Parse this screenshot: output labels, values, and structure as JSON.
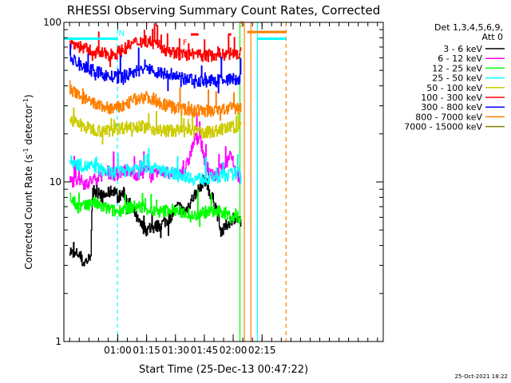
{
  "chart_data": {
    "type": "line",
    "title": "RHESSI Observing Summary Count Rates, Corrected",
    "xlabel": "Start Time (25-Dec-13 00:47:22)",
    "ylabel": "Corrected Count Rate (s",
    "ylabel_sup1": "-1",
    "ylabel_mid": " detector",
    "ylabel_sup2": "-1",
    "ylabel_end": ")",
    "y_scale": "log",
    "ylim": [
      1,
      100
    ],
    "y_ticks": [
      {
        "v": 1,
        "label": "1"
      },
      {
        "v": 10,
        "label": "10"
      },
      {
        "v": 100,
        "label": "100"
      }
    ],
    "xlim_min": [
      -15,
      151
    ],
    "x_ticks": [
      {
        "m": 13,
        "label": "01:00"
      },
      {
        "m": 28,
        "label": "01:15"
      },
      {
        "m": 43,
        "label": "01:30"
      },
      {
        "m": 58,
        "label": "01:45"
      },
      {
        "m": 73,
        "label": "02:00"
      },
      {
        "m": 88,
        "label": "02:15"
      }
    ],
    "legend_placement": "right",
    "legend_header": [
      "Det 1,3,4,5,6,9,",
      "Att 0"
    ],
    "series": [
      {
        "name": "3 - 6 keV",
        "color": "#000000",
        "x": [
          -12,
          -10,
          -8,
          -5,
          -2,
          -1,
          0,
          1,
          2,
          3,
          5,
          8,
          11,
          13,
          16,
          20,
          24,
          28,
          32,
          36,
          40,
          44,
          48,
          52,
          55,
          58,
          60,
          62,
          64,
          66,
          68,
          70,
          73,
          75,
          77
        ],
        "values": [
          3.8,
          3.4,
          3.6,
          3.1,
          3.3,
          3.7,
          8.5,
          9,
          8,
          9,
          8,
          8.5,
          9,
          8,
          8.5,
          7,
          5.5,
          5,
          5.2,
          5.5,
          6,
          7,
          6.5,
          8,
          9,
          10.5,
          9,
          8,
          7,
          5,
          5,
          5.5,
          6,
          6,
          5.5
        ]
      },
      {
        "name": "6 - 12 keV",
        "color": "#ff00ff",
        "x": [
          -12,
          -8,
          -4,
          0,
          4,
          8,
          12,
          16,
          20,
          24,
          28,
          32,
          36,
          40,
          44,
          48,
          50,
          52,
          54,
          56,
          58,
          60,
          62,
          64,
          66,
          68,
          70,
          72,
          74,
          77
        ],
        "values": [
          10,
          10.5,
          9.8,
          10.2,
          11,
          11.5,
          11,
          12,
          11.5,
          11,
          12,
          11,
          11.5,
          11.5,
          11,
          12,
          14,
          17,
          20,
          18,
          14,
          12,
          11,
          11,
          12,
          12,
          14,
          15,
          12,
          10
        ]
      },
      {
        "name": "12 - 25 keV",
        "color": "#00ff00",
        "x": [
          -12,
          -8,
          -4,
          0,
          4,
          8,
          12,
          16,
          20,
          24,
          28,
          32,
          36,
          40,
          44,
          48,
          52,
          56,
          60,
          64,
          68,
          72,
          76,
          77
        ],
        "values": [
          8,
          7,
          7,
          7.5,
          7,
          6.8,
          6.5,
          6.8,
          7,
          7,
          6.8,
          6.5,
          6.5,
          6.8,
          6.5,
          6.5,
          6,
          6.5,
          6.5,
          6.5,
          6.5,
          6,
          6,
          6
        ]
      },
      {
        "name": "25 - 50 keV",
        "color": "#00ffff",
        "x": [
          -12,
          -8,
          -4,
          0,
          4,
          8,
          12,
          16,
          20,
          24,
          28,
          32,
          36,
          40,
          44,
          48,
          52,
          56,
          60,
          64,
          68,
          72,
          76,
          77
        ],
        "values": [
          13.5,
          13,
          12.5,
          12.5,
          12,
          11.5,
          11.5,
          11.8,
          12,
          12.5,
          12.5,
          12.2,
          11.8,
          11.5,
          11.2,
          11,
          10.5,
          10.5,
          10.5,
          10.8,
          11,
          11.2,
          11.5,
          11.5
        ]
      },
      {
        "name": "50 - 100 keV",
        "color": "#cccc00",
        "x": [
          -12,
          -8,
          -4,
          0,
          4,
          8,
          12,
          16,
          20,
          24,
          28,
          32,
          36,
          40,
          44,
          48,
          52,
          56,
          60,
          64,
          68,
          72,
          76,
          77
        ],
        "values": [
          25,
          23,
          22,
          21.5,
          21,
          21,
          21.5,
          22,
          22.5,
          22.5,
          22,
          21.5,
          21,
          21,
          21,
          21,
          21,
          20.5,
          20.5,
          21,
          21.5,
          22,
          22.5,
          22.5
        ]
      },
      {
        "name": "100 - 300 keV",
        "color": "#ff0000",
        "x": [
          -12,
          -8,
          -4,
          0,
          4,
          8,
          12,
          16,
          20,
          24,
          28,
          32,
          36,
          40,
          44,
          48,
          52,
          56,
          60,
          64,
          68,
          72,
          76,
          77
        ],
        "values": [
          75,
          72,
          68,
          66,
          64,
          63,
          64,
          68,
          73,
          76,
          77,
          74,
          70,
          66,
          64,
          63,
          62,
          62,
          62,
          63,
          63,
          64,
          64,
          64
        ]
      },
      {
        "name": "300 - 800 keV",
        "color": "#0000ff",
        "x": [
          -12,
          -8,
          -4,
          0,
          4,
          8,
          12,
          16,
          20,
          24,
          28,
          32,
          36,
          40,
          44,
          48,
          52,
          56,
          60,
          64,
          68,
          72,
          76,
          77
        ],
        "values": [
          60,
          56,
          52,
          50,
          48,
          46,
          45,
          46,
          48,
          50,
          51,
          50,
          48,
          46,
          45,
          44,
          44,
          43,
          43,
          43,
          44,
          44,
          44,
          44
        ]
      },
      {
        "name": "800 - 7000 keV",
        "color": "#ff8000",
        "x": [
          -12,
          -8,
          -4,
          0,
          4,
          8,
          12,
          16,
          20,
          24,
          28,
          32,
          36,
          40,
          44,
          48,
          52,
          56,
          60,
          64,
          68,
          72,
          76,
          77
        ],
        "values": [
          38,
          35,
          33,
          31,
          30,
          29,
          29,
          30,
          32,
          34,
          34,
          33,
          31,
          30,
          29,
          28.5,
          28,
          28,
          28,
          28,
          28.5,
          29,
          29,
          29
        ]
      },
      {
        "name": "7000 - 15000 keV",
        "color": "#808000",
        "x": [],
        "values": []
      }
    ],
    "cyan_segments": [
      {
        "x": [
          -15,
          12.8
        ],
        "value": 79
      },
      {
        "x": [
          85.6,
          100.5
        ],
        "value": 79
      }
    ],
    "orange_segments": [
      {
        "x": [
          80.3,
          100.5
        ],
        "value": 87
      }
    ],
    "flag_red_segments": [
      {
        "x": [
          51,
          55
        ],
        "value": 84
      },
      {
        "x": [
          70.5,
          72
        ],
        "value": 84
      }
    ],
    "vlines": [
      {
        "m": -15,
        "color": "#00ffff",
        "dash": false
      },
      {
        "m": 12.8,
        "color": "#00ffff",
        "dash": true
      },
      {
        "m": 76.5,
        "color": "#00ff00",
        "dash": false
      },
      {
        "m": 78.8,
        "color": "#ff8000",
        "dash": false
      },
      {
        "m": 82.2,
        "color": "#ff8000",
        "dash": false
      },
      {
        "m": 85.6,
        "color": "#00ffff",
        "dash": false
      },
      {
        "m": 100.5,
        "color": "#ff8000",
        "dash": true
      }
    ],
    "markers": [
      {
        "text": "N",
        "m": 15,
        "v": 82,
        "color": "#00ffff"
      },
      {
        "text": "F",
        "m": 48,
        "v": 72,
        "color": "#ff0000"
      },
      {
        "text": "S",
        "m": 77.3,
        "v": 94,
        "color": "#ff8000"
      }
    ],
    "footer_date": "25-Oct-2021 18:22"
  }
}
